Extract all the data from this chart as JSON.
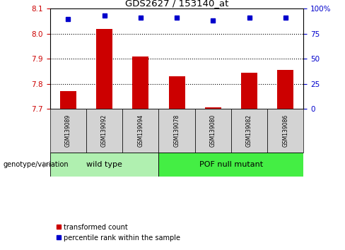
{
  "title": "GDS2627 / 153140_at",
  "samples": [
    "GSM139089",
    "GSM139092",
    "GSM139094",
    "GSM139078",
    "GSM139080",
    "GSM139082",
    "GSM139086"
  ],
  "transformed_counts": [
    7.77,
    8.02,
    7.91,
    7.83,
    7.705,
    7.845,
    7.855
  ],
  "percentile_ranks": [
    90,
    93,
    91,
    91,
    88,
    91,
    91
  ],
  "ylim_left": [
    7.7,
    8.1
  ],
  "ylim_right": [
    0,
    100
  ],
  "yticks_left": [
    7.7,
    7.8,
    7.9,
    8.0,
    8.1
  ],
  "yticks_right": [
    0,
    25,
    50,
    75,
    100
  ],
  "bar_color": "#cc0000",
  "dot_color": "#0000cc",
  "bar_baseline": 7.7,
  "legend_labels": [
    "transformed count",
    "percentile rank within the sample"
  ],
  "xlabel_group": "genotype/variation",
  "wild_type_color": "#b0f0b0",
  "pof_color": "#44ee44",
  "sample_box_color": "#d3d3d3",
  "grid_ticks": [
    7.8,
    7.9,
    8.0
  ]
}
